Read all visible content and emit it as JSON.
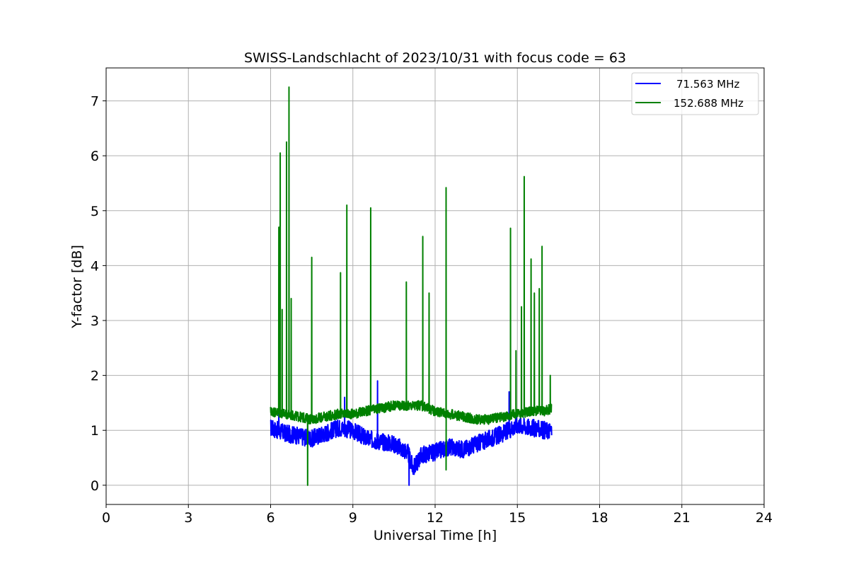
{
  "chart_data": {
    "type": "line",
    "title": "SWISS-Landschlacht of 2023/10/31 with focus code = 63",
    "xlabel": "Universal Time [h]",
    "ylabel": "Y-factor [dB]",
    "xlim": [
      0,
      24
    ],
    "ylim": [
      -0.35,
      7.6
    ],
    "xticks": [
      0,
      3,
      6,
      9,
      12,
      15,
      18,
      21,
      24
    ],
    "xtick_labels": [
      "0",
      "3",
      "6",
      "9",
      "12",
      "15",
      "18",
      "21",
      "24"
    ],
    "yticks": [
      0,
      1,
      2,
      3,
      4,
      5,
      6,
      7
    ],
    "ytick_labels": [
      "0",
      "1",
      "2",
      "3",
      "4",
      "5",
      "6",
      "7"
    ],
    "grid": true,
    "legend_position": "top-right",
    "series": [
      {
        "name": "71.563 MHz",
        "color": "#0000ff",
        "x": [
          6.0,
          6.5,
          7.0,
          7.5,
          8.0,
          8.5,
          9.0,
          9.5,
          10.0,
          10.5,
          11.0,
          11.2,
          11.5,
          12.0,
          12.5,
          13.0,
          13.5,
          14.0,
          14.5,
          15.0,
          15.5,
          16.0,
          16.25
        ],
        "values": [
          1.05,
          0.95,
          0.9,
          0.85,
          0.95,
          1.05,
          1.0,
          0.85,
          0.8,
          0.75,
          0.6,
          0.3,
          0.55,
          0.6,
          0.7,
          0.65,
          0.75,
          0.85,
          0.95,
          1.1,
          1.05,
          1.0,
          1.0
        ],
        "spikes": [
          {
            "x": 6.3,
            "y": 1.5
          },
          {
            "x": 8.7,
            "y": 1.6
          },
          {
            "x": 9.9,
            "y": 1.9
          },
          {
            "x": 11.05,
            "y": 0.0
          },
          {
            "x": 14.7,
            "y": 1.7
          }
        ]
      },
      {
        "name": "152.688 MHz",
        "color": "#008000",
        "x": [
          6.0,
          6.5,
          7.0,
          7.5,
          8.0,
          8.5,
          9.0,
          9.5,
          10.0,
          10.5,
          11.0,
          11.5,
          12.0,
          12.5,
          13.0,
          13.5,
          14.0,
          14.5,
          15.0,
          15.5,
          16.0,
          16.25
        ],
        "values": [
          1.35,
          1.3,
          1.25,
          1.2,
          1.25,
          1.3,
          1.3,
          1.35,
          1.4,
          1.45,
          1.45,
          1.45,
          1.35,
          1.3,
          1.25,
          1.2,
          1.2,
          1.25,
          1.3,
          1.35,
          1.35,
          1.4
        ],
        "spikes": [
          {
            "x": 6.35,
            "y": 6.05
          },
          {
            "x": 6.42,
            "y": 3.2
          },
          {
            "x": 6.3,
            "y": 4.7
          },
          {
            "x": 6.58,
            "y": 6.25
          },
          {
            "x": 6.67,
            "y": 7.25
          },
          {
            "x": 6.75,
            "y": 3.4
          },
          {
            "x": 7.35,
            "y": 0.0
          },
          {
            "x": 7.5,
            "y": 4.15
          },
          {
            "x": 8.55,
            "y": 3.87
          },
          {
            "x": 8.78,
            "y": 5.1
          },
          {
            "x": 9.65,
            "y": 5.05
          },
          {
            "x": 10.95,
            "y": 3.7
          },
          {
            "x": 11.55,
            "y": 4.53
          },
          {
            "x": 11.78,
            "y": 3.5
          },
          {
            "x": 12.4,
            "y": 5.42
          },
          {
            "x": 12.4,
            "y": 0.28
          },
          {
            "x": 14.75,
            "y": 4.68
          },
          {
            "x": 14.95,
            "y": 2.45
          },
          {
            "x": 15.15,
            "y": 3.25
          },
          {
            "x": 15.25,
            "y": 5.62
          },
          {
            "x": 15.5,
            "y": 4.12
          },
          {
            "x": 15.62,
            "y": 3.5
          },
          {
            "x": 15.8,
            "y": 3.58
          },
          {
            "x": 15.9,
            "y": 4.35
          },
          {
            "x": 16.2,
            "y": 2.0
          }
        ]
      }
    ]
  }
}
